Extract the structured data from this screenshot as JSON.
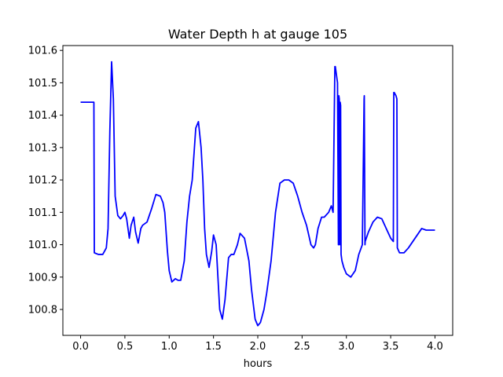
{
  "chart_data": {
    "type": "line",
    "title": "Water Depth h at gauge 105",
    "xlabel": "hours",
    "ylabel": "",
    "xlim": [
      -0.2,
      4.2
    ],
    "ylim": [
      100.72,
      101.615
    ],
    "xticks": [
      0.0,
      0.5,
      1.0,
      1.5,
      2.0,
      2.5,
      3.0,
      3.5,
      4.0
    ],
    "xtick_labels": [
      "0.0",
      "0.5",
      "1.0",
      "1.5",
      "2.0",
      "2.5",
      "3.0",
      "3.5",
      "4.0"
    ],
    "yticks": [
      100.8,
      100.9,
      101.0,
      101.1,
      101.2,
      101.3,
      101.4,
      101.5,
      101.6
    ],
    "ytick_labels": [
      "100.8",
      "100.9",
      "101.0",
      "101.1",
      "101.2",
      "101.3",
      "101.4",
      "101.5",
      "101.6"
    ],
    "grid": false,
    "series": [
      {
        "color": "#0000ff",
        "x": [
          0.0,
          0.15,
          0.155,
          0.2,
          0.25,
          0.29,
          0.31,
          0.33,
          0.35,
          0.37,
          0.39,
          0.42,
          0.45,
          0.48,
          0.5,
          0.52,
          0.55,
          0.57,
          0.6,
          0.62,
          0.65,
          0.68,
          0.7,
          0.75,
          0.8,
          0.85,
          0.9,
          0.93,
          0.95,
          0.98,
          1.0,
          1.03,
          1.07,
          1.1,
          1.13,
          1.17,
          1.2,
          1.23,
          1.26,
          1.3,
          1.33,
          1.36,
          1.38,
          1.4,
          1.42,
          1.45,
          1.48,
          1.5,
          1.53,
          1.57,
          1.6,
          1.63,
          1.67,
          1.7,
          1.73,
          1.77,
          1.8,
          1.85,
          1.9,
          1.93,
          1.97,
          2.0,
          2.03,
          2.07,
          2.1,
          2.15,
          2.2,
          2.25,
          2.3,
          2.35,
          2.4,
          2.45,
          2.5,
          2.55,
          2.6,
          2.63,
          2.65,
          2.68,
          2.72,
          2.75,
          2.8,
          2.83,
          2.85,
          2.87,
          2.875,
          2.88,
          2.9,
          2.91,
          2.915,
          2.92,
          2.925,
          2.93,
          2.935,
          2.94,
          2.945,
          2.95,
          2.97,
          3.0,
          3.05,
          3.1,
          3.14,
          3.18,
          3.2,
          3.202,
          3.21,
          3.212,
          3.25,
          3.3,
          3.35,
          3.4,
          3.45,
          3.5,
          3.53,
          3.535,
          3.54,
          3.56,
          3.57,
          3.575,
          3.6,
          3.65,
          3.7,
          3.75,
          3.8,
          3.85,
          3.9,
          3.95,
          4.0
        ],
        "y": [
          101.44,
          101.44,
          100.975,
          100.97,
          100.97,
          100.99,
          101.05,
          101.35,
          101.565,
          101.45,
          101.15,
          101.09,
          101.08,
          101.09,
          101.1,
          101.08,
          101.02,
          101.06,
          101.085,
          101.04,
          101.005,
          101.05,
          101.06,
          101.07,
          101.11,
          101.155,
          101.15,
          101.13,
          101.1,
          100.98,
          100.92,
          100.885,
          100.895,
          100.89,
          100.89,
          100.95,
          101.07,
          101.15,
          101.2,
          101.36,
          101.38,
          101.3,
          101.2,
          101.05,
          100.97,
          100.93,
          100.98,
          101.03,
          101.0,
          100.8,
          100.77,
          100.83,
          100.96,
          100.97,
          100.97,
          101.0,
          101.035,
          101.02,
          100.95,
          100.86,
          100.77,
          100.75,
          100.76,
          100.8,
          100.85,
          100.95,
          101.1,
          101.19,
          101.2,
          101.2,
          101.19,
          101.15,
          101.1,
          101.06,
          101.0,
          100.99,
          101.0,
          101.05,
          101.085,
          101.085,
          101.1,
          101.12,
          101.1,
          101.55,
          101.55,
          101.54,
          101.5,
          101.0,
          101.46,
          101.45,
          101.0,
          101.44,
          101.43,
          100.97,
          100.96,
          100.95,
          100.93,
          100.91,
          100.9,
          100.92,
          100.97,
          101.0,
          101.45,
          101.46,
          101.0,
          101.01,
          101.04,
          101.07,
          101.085,
          101.08,
          101.05,
          101.02,
          101.01,
          101.47,
          101.47,
          101.46,
          101.45,
          100.99,
          100.975,
          100.975,
          100.99,
          101.01,
          101.03,
          101.05,
          101.045,
          101.045,
          101.045
        ]
      }
    ]
  }
}
